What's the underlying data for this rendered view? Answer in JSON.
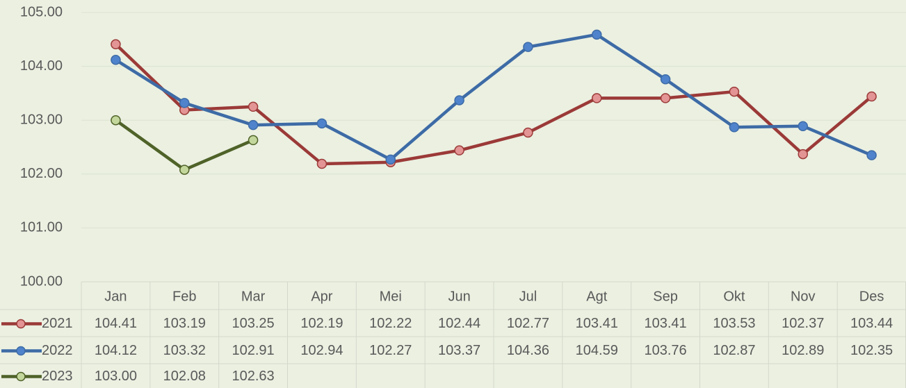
{
  "chart_data": {
    "type": "line",
    "categories": [
      "Jan",
      "Feb",
      "Mar",
      "Apr",
      "Mei",
      "Jun",
      "Jul",
      "Agt",
      "Sep",
      "Okt",
      "Nov",
      "Des"
    ],
    "series": [
      {
        "name": "2021",
        "color": "#9b3a38",
        "marker_color": "#e39494",
        "values": [
          104.41,
          103.19,
          103.25,
          102.19,
          102.22,
          102.44,
          102.77,
          103.41,
          103.41,
          103.53,
          102.37,
          103.44
        ]
      },
      {
        "name": "2022",
        "color": "#3d6ba6",
        "marker_color": "#4f83cc",
        "values": [
          104.12,
          103.32,
          102.91,
          102.94,
          102.27,
          103.37,
          104.36,
          104.59,
          103.76,
          102.87,
          102.89,
          102.35
        ]
      },
      {
        "name": "2023",
        "color": "#4f6228",
        "marker_color": "#c3d69b",
        "values": [
          103,
          102.08,
          102.63,
          null,
          null,
          null,
          null,
          null,
          null,
          null,
          null,
          null
        ],
        "value_labels": [
          "103.00",
          "102.08",
          "102.63",
          null,
          null,
          null,
          null,
          null,
          null,
          null,
          null,
          null
        ]
      }
    ],
    "ylim": [
      100,
      105
    ],
    "yticks": [
      {
        "value": 100,
        "label": "100.00"
      },
      {
        "value": 101,
        "label": "101.00"
      },
      {
        "value": 102,
        "label": "102.00"
      },
      {
        "value": 103,
        "label": "103.00"
      },
      {
        "value": 104,
        "label": "104.00"
      },
      {
        "value": 105,
        "label": "105.00"
      }
    ],
    "grid": true
  }
}
